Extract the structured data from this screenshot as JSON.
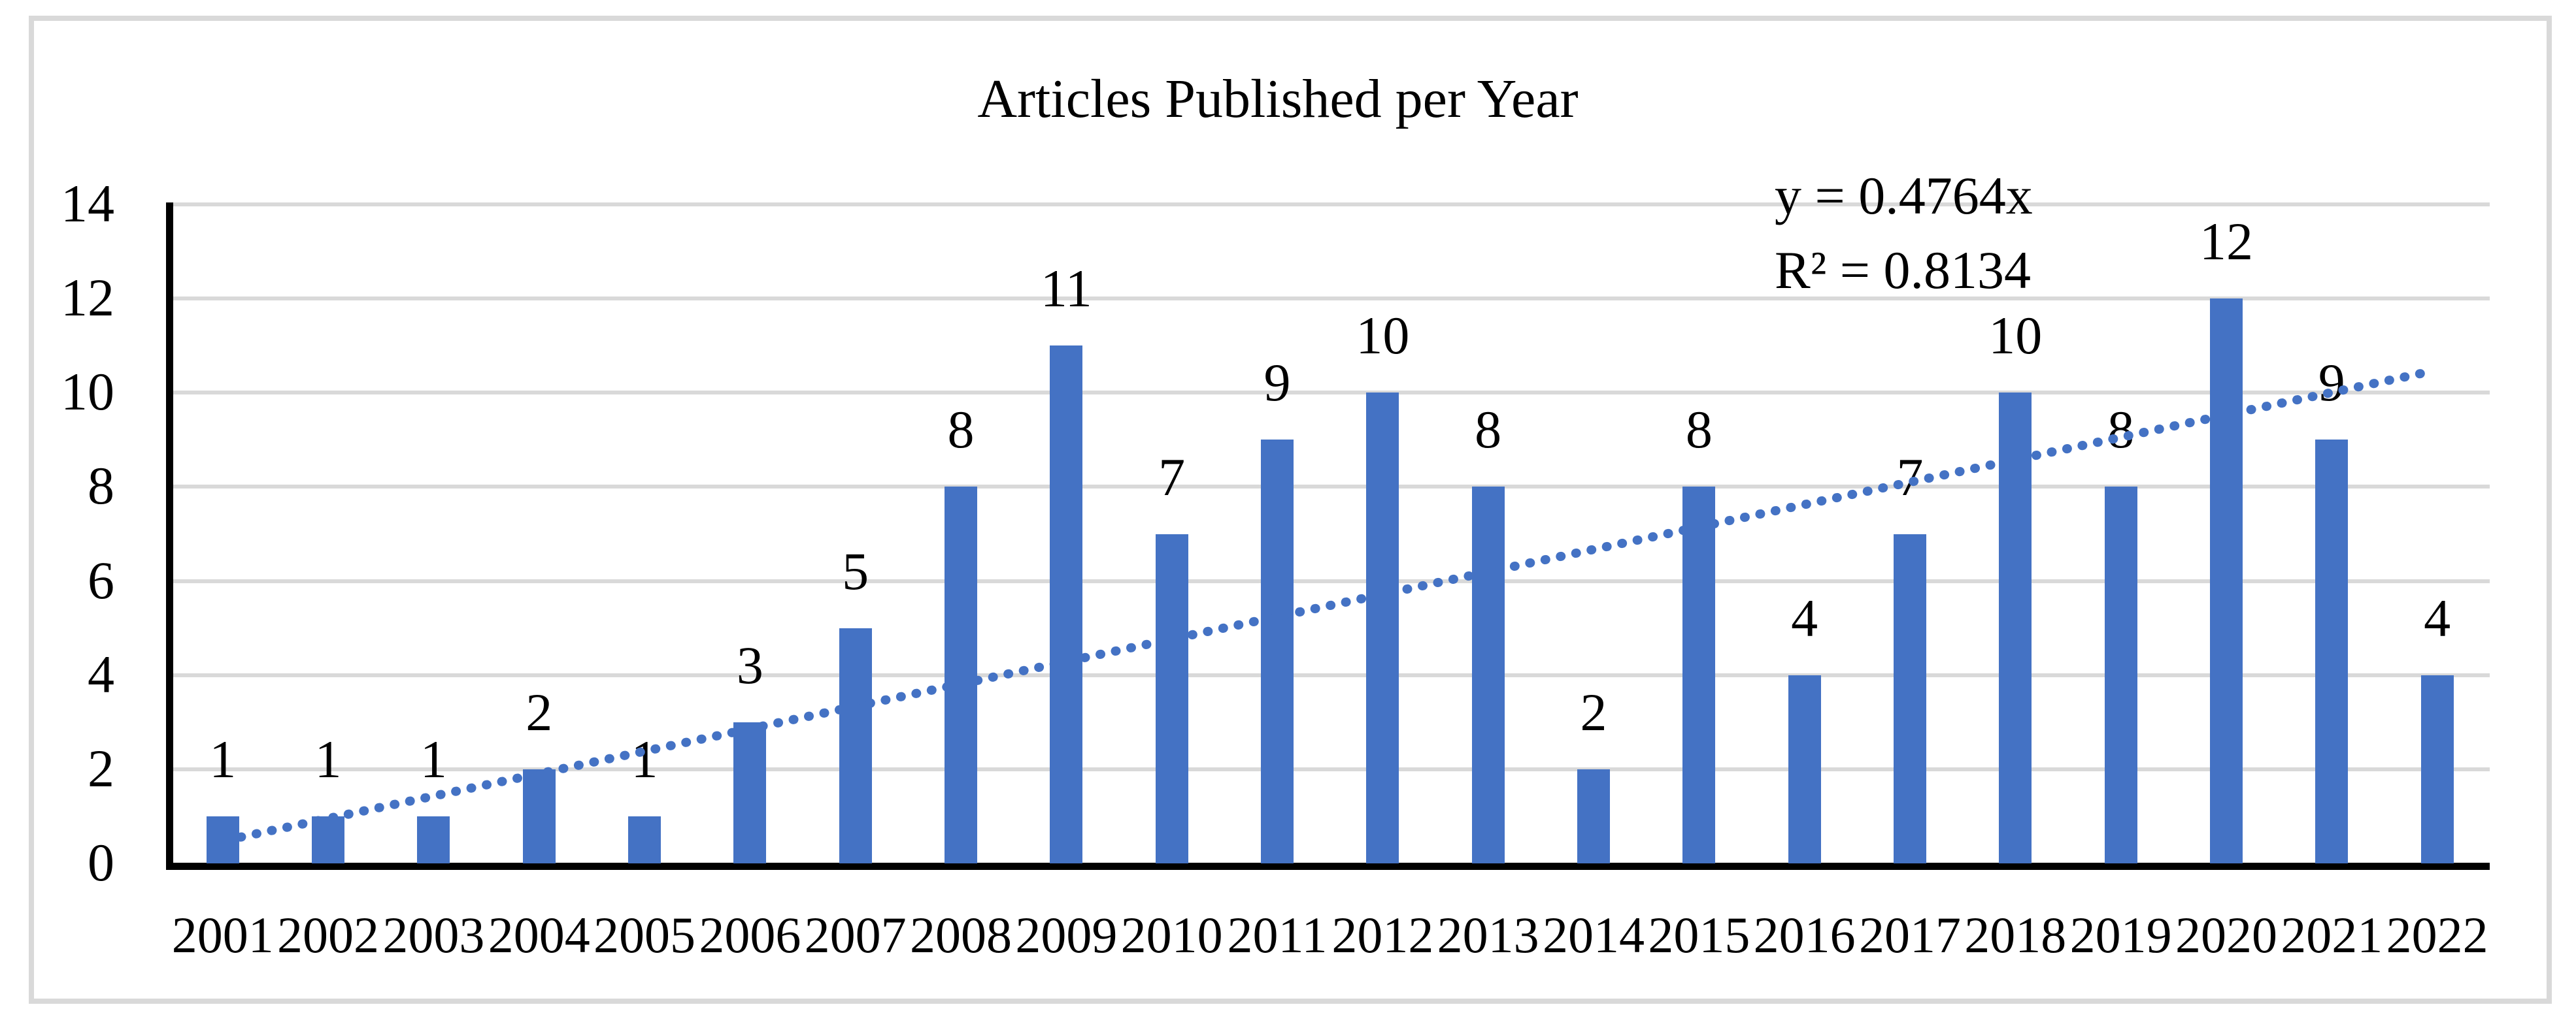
{
  "chart_data": {
    "type": "bar",
    "title": "Articles Published per Year",
    "categories": [
      "2001",
      "2002",
      "2003",
      "2004",
      "2005",
      "2006",
      "2007",
      "2008",
      "2009",
      "2010",
      "2011",
      "2012",
      "2013",
      "2014",
      "2015",
      "2016",
      "2017",
      "2018",
      "2019",
      "2020",
      "2021",
      "2022"
    ],
    "values": [
      1,
      1,
      1,
      2,
      1,
      3,
      5,
      8,
      11,
      7,
      9,
      10,
      8,
      2,
      8,
      4,
      7,
      10,
      8,
      12,
      9,
      4
    ],
    "data_labels_shown": true,
    "xlabel": "",
    "ylabel": "",
    "ylim": [
      0,
      14
    ],
    "y_ticks": [
      0,
      2,
      4,
      6,
      8,
      10,
      12,
      14
    ],
    "grid": "horizontal",
    "legend_position": "none",
    "bar_color": "#4472C4",
    "gridline_color": "#D9D9D9",
    "axis_color": "#000000",
    "text_color": "#000000",
    "frame_color": "#D9D9D9",
    "trendline": {
      "type": "linear",
      "equation": "y = 0.4764x",
      "r_squared_label": "R² = 0.8134",
      "slope": 0.4764,
      "r_squared": 0.8134,
      "style": "dotted",
      "color": "#4472C4"
    }
  }
}
